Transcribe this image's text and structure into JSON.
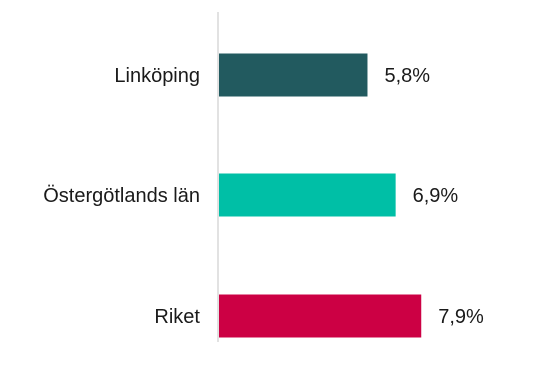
{
  "chart_data": {
    "type": "bar",
    "orientation": "horizontal",
    "title": "",
    "xlabel": "",
    "ylabel": "",
    "categories": [
      "Linköping",
      "Östergötlands län",
      "Riket"
    ],
    "values": [
      5.8,
      6.9,
      7.9
    ],
    "value_labels": [
      "5,8%",
      "6,9%",
      "7,9%"
    ],
    "colors": [
      "#225a5f",
      "#00bfa6",
      "#cc0044"
    ],
    "axis_color": "#d9d9d9",
    "xlim": [
      0,
      10
    ],
    "grid": false,
    "legend": "none"
  }
}
